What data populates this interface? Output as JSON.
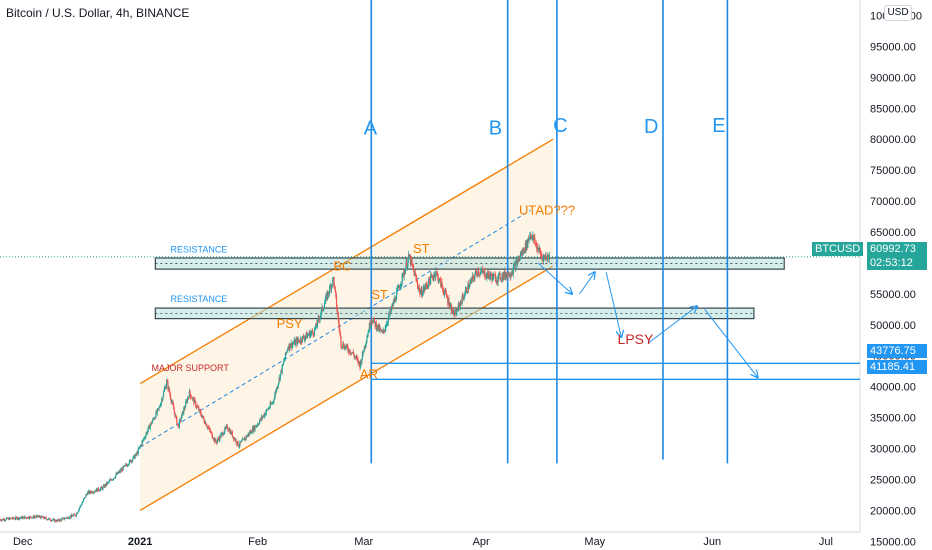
{
  "header": {
    "title": "Bitcoin / U.S. Dollar, 4h, BINANCE",
    "currency_button": "USD"
  },
  "price_tags": {
    "symbol": "BTCUSD",
    "last_price": "60992.73",
    "countdown": "02:53:12",
    "level_1": "43776.75",
    "level_2": "41185.41"
  },
  "colors": {
    "up": "#26a69a",
    "down": "#ef5350",
    "channel": "#f57c00",
    "channel_fill": "#fff3e0",
    "wave_lines": "#1e88e5",
    "zone_fill": "#b2dfdb",
    "zone_border": "#37474f",
    "level_lines": "#2196f3",
    "label_orange": "#f57c00",
    "label_red": "#c62828",
    "label_blue": "#2196f3"
  },
  "chart_data": {
    "type": "candlestick",
    "title": "Bitcoin / U.S. Dollar, 4h, BINANCE",
    "xlim": [
      "2020-11-25",
      "2021-07-10"
    ],
    "ylim": [
      13600,
      102500
    ],
    "y_ticks": [
      "100000.00",
      "95000.00",
      "90000.00",
      "85000.00",
      "80000.00",
      "75000.00",
      "70000.00",
      "65000.00",
      "60000.00",
      "55000.00",
      "50000.00",
      "45000.00",
      "40000.00",
      "35000.00",
      "30000.00",
      "25000.00",
      "20000.00",
      "15000.00"
    ],
    "x_ticks": [
      {
        "date": "2020-12-01",
        "label": "Dec"
      },
      {
        "date": "2021-01-01",
        "label": "2021"
      },
      {
        "date": "2021-02-01",
        "label": "Feb"
      },
      {
        "date": "2021-03-01",
        "label": "Mar"
      },
      {
        "date": "2021-04-01",
        "label": "Apr"
      },
      {
        "date": "2021-05-01",
        "label": "May"
      },
      {
        "date": "2021-06-01",
        "label": "Jun"
      },
      {
        "date": "2021-07-01",
        "label": "Jul"
      }
    ],
    "price_path": [
      [
        "2020-11-25",
        18500
      ],
      [
        "2020-11-30",
        18800
      ],
      [
        "2020-12-05",
        19000
      ],
      [
        "2020-12-10",
        18300
      ],
      [
        "2020-12-15",
        19300
      ],
      [
        "2020-12-18",
        22800
      ],
      [
        "2020-12-22",
        23600
      ],
      [
        "2020-12-27",
        26500
      ],
      [
        "2020-12-31",
        29000
      ],
      [
        "2021-01-03",
        33000
      ],
      [
        "2021-01-06",
        36500
      ],
      [
        "2021-01-08",
        40800
      ],
      [
        "2021-01-11",
        33500
      ],
      [
        "2021-01-14",
        39000
      ],
      [
        "2021-01-21",
        31000
      ],
      [
        "2021-01-24",
        33500
      ],
      [
        "2021-01-27",
        30500
      ],
      [
        "2021-02-01",
        34000
      ],
      [
        "2021-02-05",
        37500
      ],
      [
        "2021-02-09",
        46500
      ],
      [
        "2021-02-12",
        47500
      ],
      [
        "2021-02-16",
        49000
      ],
      [
        "2021-02-21",
        57500
      ],
      [
        "2021-02-23",
        47000
      ],
      [
        "2021-02-26",
        45500
      ],
      [
        "2021-02-28",
        43500
      ],
      [
        "2021-03-03",
        51000
      ],
      [
        "2021-03-06",
        48500
      ],
      [
        "2021-03-10",
        55500
      ],
      [
        "2021-03-13",
        61000
      ],
      [
        "2021-03-16",
        55000
      ],
      [
        "2021-03-20",
        58500
      ],
      [
        "2021-03-25",
        51500
      ],
      [
        "2021-03-28",
        55500
      ],
      [
        "2021-03-31",
        58700
      ],
      [
        "2021-04-05",
        57500
      ],
      [
        "2021-04-09",
        58500
      ],
      [
        "2021-04-13",
        63000
      ],
      [
        "2021-04-14",
        64800
      ],
      [
        "2021-04-17",
        61000
      ],
      [
        "2021-04-19",
        60992
      ]
    ],
    "levels": [
      {
        "value": 43776.75,
        "label": "43776.75"
      },
      {
        "value": 41185.41,
        "label": "41185.41"
      },
      {
        "value": 60992.73,
        "label": "BTCUSD"
      }
    ],
    "zones": [
      {
        "label": "RESISTANCE",
        "from": "2021-01-05",
        "to": "2021-06-20",
        "low": 59000,
        "high": 60800
      },
      {
        "label": "RESISTANCE",
        "from": "2021-01-05",
        "to": "2021-06-12",
        "low": 51000,
        "high": 52700
      }
    ],
    "channel": {
      "lower": [
        [
          "2021-01-01",
          20000
        ],
        [
          "2021-04-20",
          59500
        ]
      ],
      "upper": [
        [
          "2021-01-01",
          40500
        ],
        [
          "2021-04-20",
          80000
        ]
      ],
      "mid": [
        [
          "2021-01-01",
          30250
        ],
        [
          "2021-04-14",
          68500
        ]
      ]
    },
    "vertical_lines": [
      {
        "label": "A",
        "date": "2021-03-03"
      },
      {
        "label": "B",
        "date": "2021-04-08"
      },
      {
        "label": "C",
        "date": "2021-04-21"
      },
      {
        "label": "D",
        "date": "2021-05-19"
      },
      {
        "label": "E",
        "date": "2021-06-05"
      }
    ],
    "projection_arrows": [
      [
        [
          "2021-04-16",
          60000
        ],
        [
          "2021-04-25",
          55000
        ]
      ],
      [
        [
          "2021-04-27",
          55000
        ],
        [
          "2021-05-01",
          58500
        ]
      ],
      [
        [
          "2021-05-04",
          58500
        ],
        [
          "2021-05-08",
          48000
        ]
      ],
      [
        [
          "2021-05-15",
          47000
        ],
        [
          "2021-05-28",
          53000
        ]
      ],
      [
        [
          "2021-05-30",
          52500
        ],
        [
          "2021-06-13",
          41500
        ]
      ]
    ],
    "annotations": [
      {
        "text": "MAJOR SUPPORT",
        "date": "2021-01-04",
        "price": 42500,
        "color": "label_red",
        "size": 9
      },
      {
        "text": "RESISTANCE",
        "date": "2021-01-09",
        "price": 61700,
        "color": "label_blue",
        "size": 9
      },
      {
        "text": "RESISTANCE",
        "date": "2021-01-09",
        "price": 53700,
        "color": "label_blue",
        "size": 9
      },
      {
        "text": "PSY",
        "date": "2021-02-06",
        "price": 49500,
        "color": "label_orange",
        "size": 13
      },
      {
        "text": "BC",
        "date": "2021-02-21",
        "price": 58800,
        "color": "label_orange",
        "size": 13
      },
      {
        "text": "ST",
        "date": "2021-03-03",
        "price": 54200,
        "color": "label_orange",
        "size": 13
      },
      {
        "text": "AR",
        "date": "2021-02-28",
        "price": 41300,
        "color": "label_orange",
        "size": 13
      },
      {
        "text": "ST",
        "date": "2021-03-14",
        "price": 61600,
        "color": "label_orange",
        "size": 13
      },
      {
        "text": "UTAD???",
        "date": "2021-04-11",
        "price": 67800,
        "color": "label_orange",
        "size": 13
      },
      {
        "text": "LPSY",
        "date": "2021-05-07",
        "price": 46900,
        "color": "label_red",
        "size": 14
      },
      {
        "text": "A",
        "date": "2021-03-01",
        "price": 80800,
        "color": "label_blue",
        "size": 20
      },
      {
        "text": "B",
        "date": "2021-04-03",
        "price": 80800,
        "color": "label_blue",
        "size": 20
      },
      {
        "text": "C",
        "date": "2021-04-20",
        "price": 81200,
        "color": "label_blue",
        "size": 20
      },
      {
        "text": "D",
        "date": "2021-05-14",
        "price": 81000,
        "color": "label_blue",
        "size": 20
      },
      {
        "text": "E",
        "date": "2021-06-01",
        "price": 81200,
        "color": "label_blue",
        "size": 20
      }
    ]
  }
}
